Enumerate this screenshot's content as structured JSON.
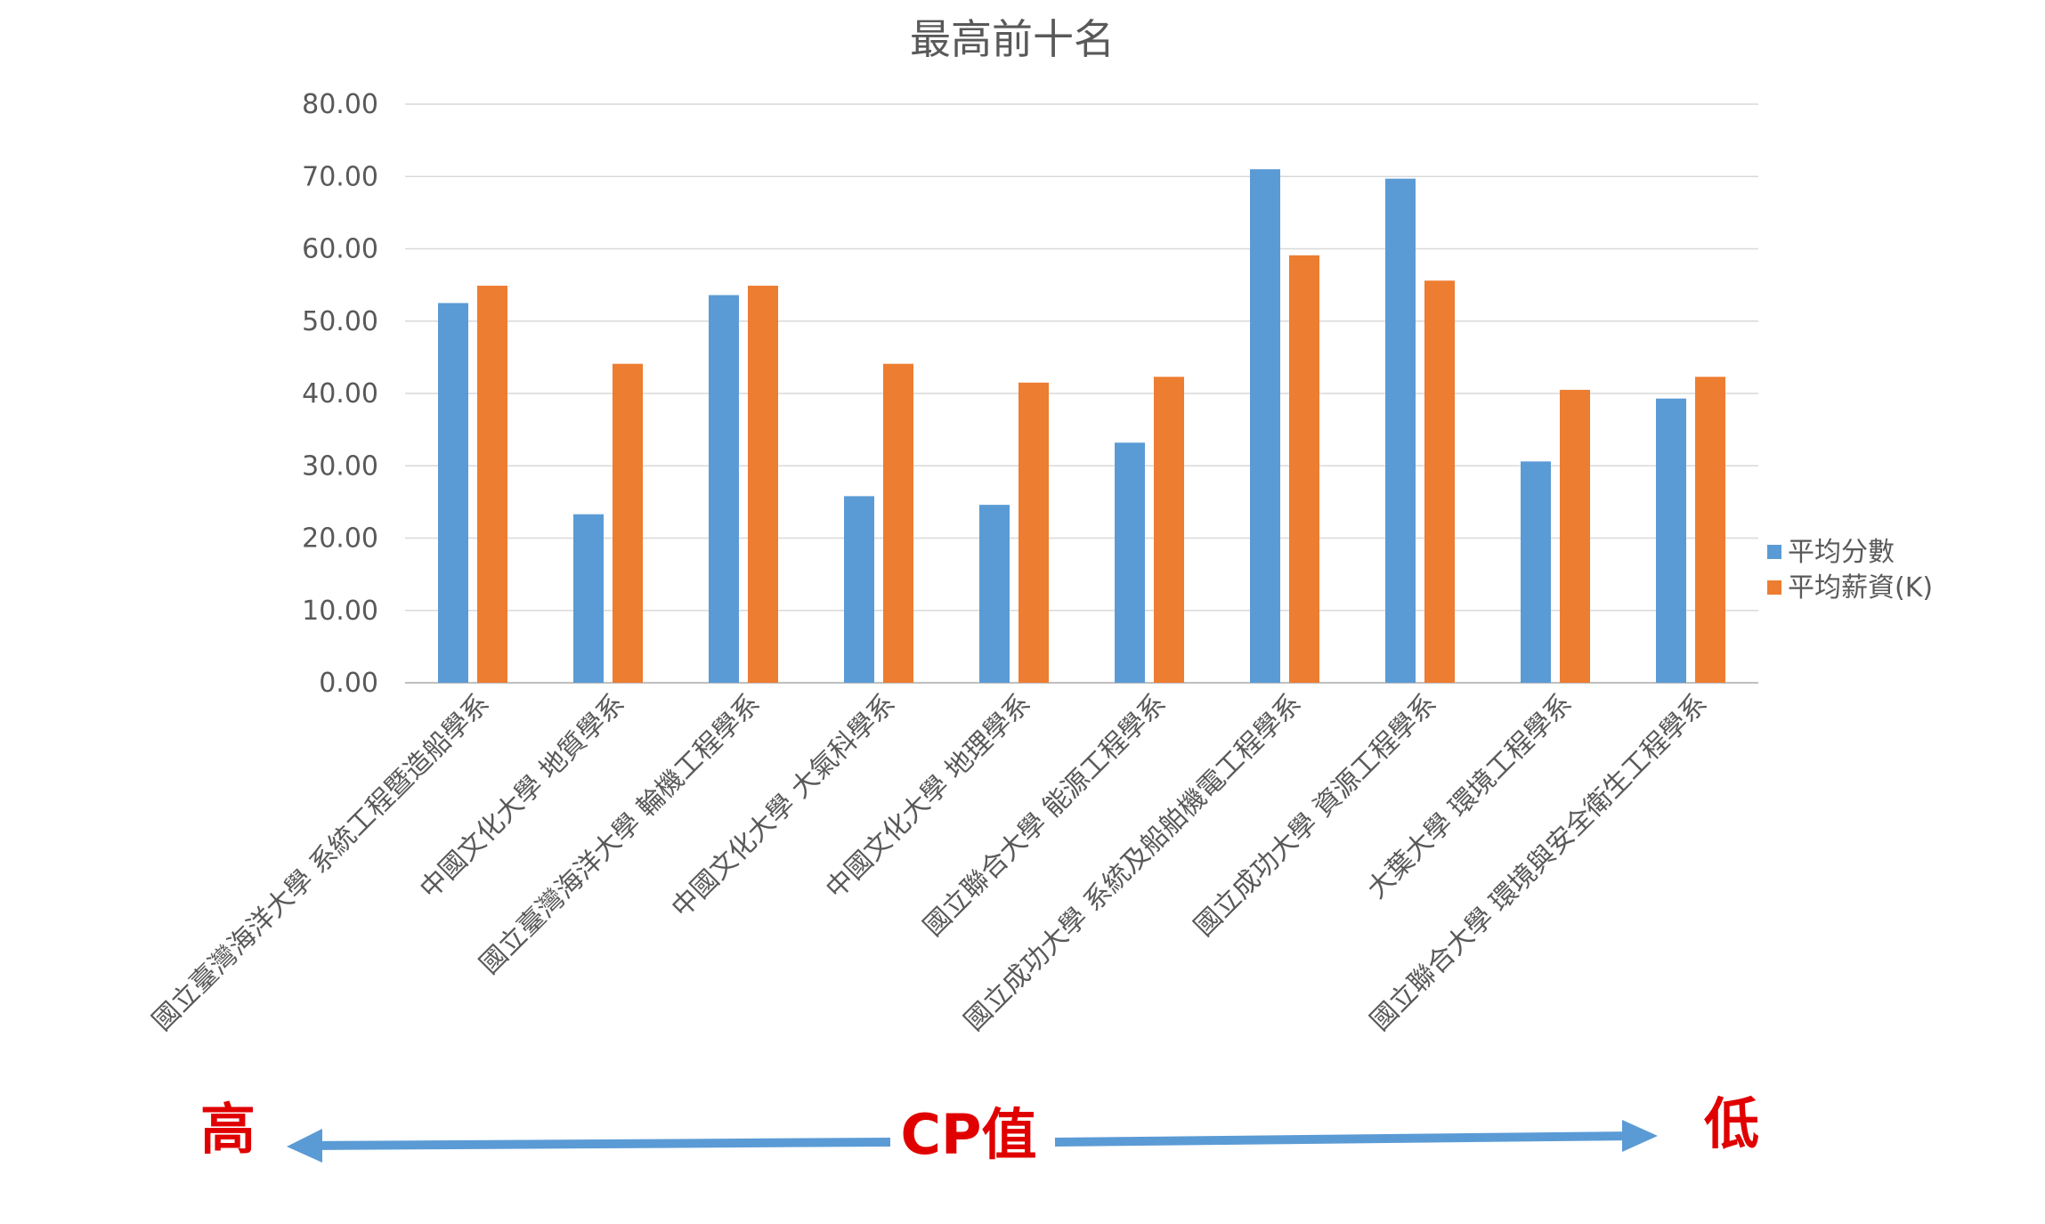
{
  "chart_data": {
    "type": "bar",
    "title": "最高前十名",
    "categories": [
      "國立臺灣海洋大學 系統工程暨造船學系",
      "中國文化大學 地質學系",
      "國立臺灣海洋大學 輪機工程學系",
      "中國文化大學 大氣科學系",
      "中國文化大學 地理學系",
      "國立聯合大學 能源工程學系",
      "國立成功大學 系統及船舶機電工程學系",
      "國立成功大學 資源工程學系",
      "大葉大學 環境工程學系",
      "國立聯合大學 環境與安全衛生工程學系"
    ],
    "series": [
      {
        "name": "平均分數",
        "color": "#5b9bd5",
        "values": [
          52.5,
          23.3,
          53.6,
          25.8,
          24.6,
          33.2,
          71.0,
          69.7,
          30.6,
          39.3
        ]
      },
      {
        "name": "平均薪資(K)",
        "color": "#ed7d31",
        "values": [
          54.9,
          44.1,
          54.9,
          44.1,
          41.5,
          42.3,
          59.1,
          55.6,
          40.5,
          42.3
        ]
      }
    ],
    "ylim": [
      0,
      80
    ],
    "yticks": [
      "0.00",
      "10.00",
      "20.00",
      "30.00",
      "40.00",
      "50.00",
      "60.00",
      "70.00",
      "80.00"
    ],
    "grid": true,
    "legend_position": "right"
  },
  "annotation": {
    "left_label": "高",
    "center_label": "CP值",
    "right_label": "低",
    "label_color": "#e00000",
    "arrow_color": "#5b9bd5"
  }
}
